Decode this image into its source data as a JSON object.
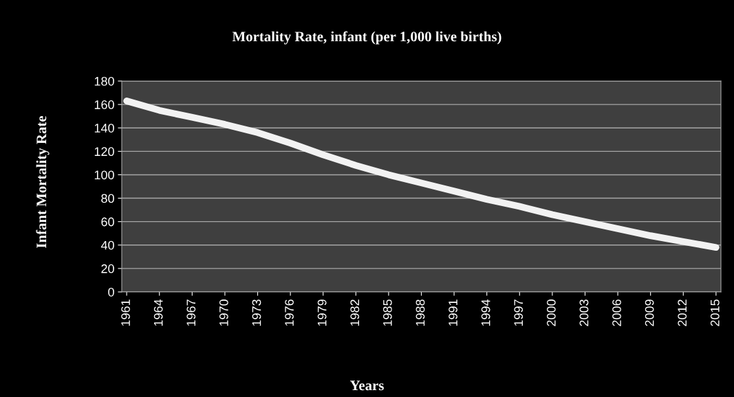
{
  "chart_data": {
    "type": "line",
    "title": "Mortality Rate, infant (per 1,000 live births)",
    "xlabel": "Years",
    "ylabel": "Infant Mortality Rate",
    "categories": [
      "1961",
      "1964",
      "1967",
      "1970",
      "1973",
      "1976",
      "1979",
      "1982",
      "1985",
      "1988",
      "1991",
      "1994",
      "1997",
      "2000",
      "2003",
      "2006",
      "2009",
      "2012",
      "2015"
    ],
    "series": [
      {
        "color": "#f2f2f2",
        "values": [
          163,
          155,
          149,
          143,
          136,
          127,
          117,
          108,
          100,
          93,
          86,
          79,
          73,
          66,
          60,
          54,
          48,
          43,
          38
        ]
      }
    ],
    "ylim": [
      0,
      180
    ],
    "yticks": [
      0,
      20,
      40,
      60,
      80,
      100,
      120,
      140,
      160,
      180
    ],
    "grid": "y",
    "legend": false,
    "marker": "none",
    "line_style": "solid"
  }
}
